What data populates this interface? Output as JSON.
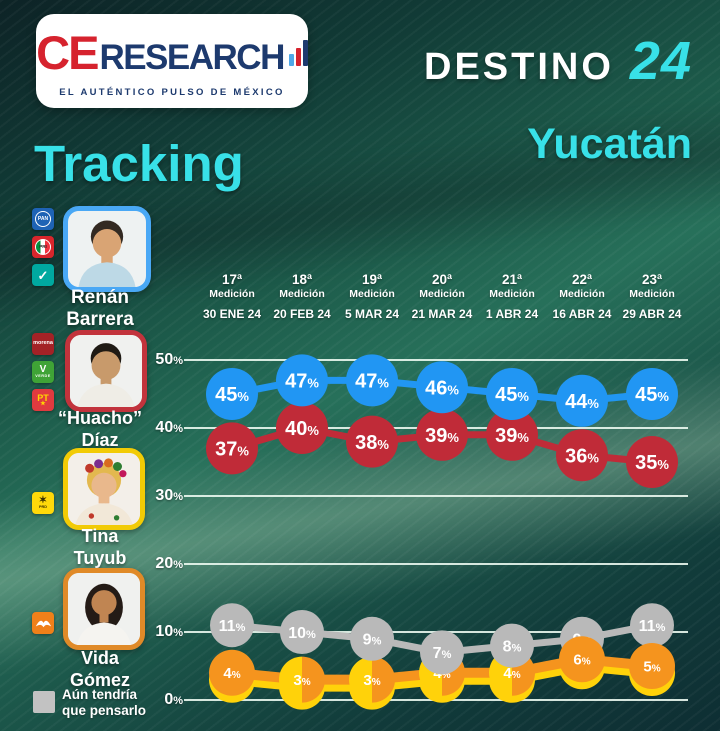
{
  "header": {
    "logo": {
      "ce": "CE",
      "research": "RESEARCH",
      "tagline": "EL AUTÉNTICO PULSO DE MÉXICO"
    },
    "title_main": "DESTINO",
    "title_year": "24",
    "subtitle": "Yucatán",
    "section_title": "Tracking"
  },
  "colors": {
    "accent_cyan": "#38e1e8",
    "logo_red": "#d6232e",
    "logo_navy": "#1d3a6e",
    "background_teal": "#1d5c4b"
  },
  "party_logos": {
    "pan": "PAN",
    "pri": "PRI",
    "nueva_alianza": "✓",
    "morena": "morena",
    "verde_v": "V",
    "verde_word": "VERDE",
    "pt": "PT",
    "pt_star": "★",
    "prd_sun": "✶",
    "prd": "PRD",
    "mc": "mc-eagle-icon"
  },
  "candidates": [
    {
      "name_line1": "Renán",
      "name_line2": "Barrera",
      "border_color": "#49a8f5",
      "parties": [
        "PAN",
        "PRI",
        "Nueva Alianza"
      ]
    },
    {
      "name_line1": "“Huacho”",
      "name_line2": "Díaz",
      "border_color": "#c2333c",
      "parties": [
        "MORENA",
        "VERDE",
        "PT"
      ]
    },
    {
      "name_line1": "Tina",
      "name_line2": "Tuyub",
      "border_color": "#f2cb05",
      "parties": [
        "PRD"
      ]
    },
    {
      "name_line1": "Vida",
      "name_line2": "Gómez",
      "border_color": "#e08a28",
      "parties": [
        "Movimiento Ciudadano"
      ]
    }
  ],
  "legend": {
    "line1": "Aún tendría",
    "line2": "que pensarlo",
    "color": "#c2c2c2"
  },
  "chart_data": {
    "type": "line",
    "title": "Tracking Destino 24 Yucatán",
    "categories": [
      {
        "num": "17ª",
        "word": "Medición",
        "date": "30 ENE 24"
      },
      {
        "num": "18ª",
        "word": "Medición",
        "date": "20 FEB 24"
      },
      {
        "num": "19ª",
        "word": "Medición",
        "date": "5 MAR 24"
      },
      {
        "num": "20ª",
        "word": "Medición",
        "date": "21 MAR 24"
      },
      {
        "num": "21ª",
        "word": "Medición",
        "date": "1 ABR 24"
      },
      {
        "num": "22ª",
        "word": "Medición",
        "date": "16 ABR 24"
      },
      {
        "num": "23ª",
        "word": "Medición",
        "date": "29 ABR 24"
      }
    ],
    "y_tick_labels": [
      "50%",
      "40%",
      "30%",
      "20%",
      "10%",
      "0%"
    ],
    "ylim": [
      0,
      50
    ],
    "grid": true,
    "grid_step": 10,
    "legend_position": "bottom-left",
    "series": [
      {
        "key": "barrera",
        "name": "Renán Barrera",
        "color": "#2196f3",
        "values": [
          45,
          47,
          47,
          46,
          45,
          44,
          45
        ]
      },
      {
        "key": "diaz",
        "name": "“Huacho” Díaz",
        "color": "#c02b38",
        "values": [
          37,
          40,
          38,
          39,
          39,
          36,
          35
        ]
      },
      {
        "key": "undecided",
        "name": "Aún tendría que pensarlo",
        "color": "#b9b9b9",
        "values": [
          11,
          10,
          9,
          7,
          8,
          9,
          11
        ]
      },
      {
        "key": "gomez",
        "name": "Vida Gómez",
        "color": "#f5941e",
        "values": [
          4,
          3,
          3,
          4,
          4,
          6,
          5
        ]
      },
      {
        "key": "tuyub",
        "name": "Tina Tuyub",
        "color": "#ffd20a",
        "values": [
          4,
          3,
          3,
          4,
          4,
          6,
          5
        ]
      }
    ],
    "tied_split_points": [
      1,
      2,
      3,
      4
    ]
  }
}
